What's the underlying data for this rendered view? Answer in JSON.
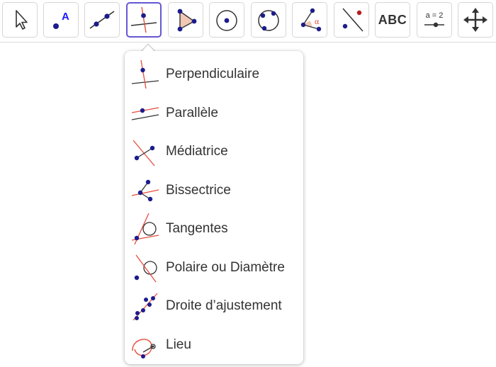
{
  "toolbar": {
    "tools": [
      {
        "name": "move",
        "icon": "cursor-arrow-icon"
      },
      {
        "name": "point",
        "icon": "point-icon",
        "label": "A"
      },
      {
        "name": "line",
        "icon": "line-icon"
      },
      {
        "name": "perpendicular",
        "icon": "perpendicular-line-icon",
        "selected": true
      },
      {
        "name": "polygon",
        "icon": "triangle-polygon-icon"
      },
      {
        "name": "circle-center-point",
        "icon": "circle-center-icon"
      },
      {
        "name": "circle-three-points",
        "icon": "circle-three-points-icon"
      },
      {
        "name": "angle",
        "icon": "angle-icon",
        "label": "α"
      },
      {
        "name": "reflect",
        "icon": "reflect-line-icon"
      },
      {
        "name": "text",
        "icon": "text-abc-icon",
        "label": "ABC"
      },
      {
        "name": "slider",
        "icon": "slider-icon",
        "label": "a = 2"
      },
      {
        "name": "move-graphics",
        "icon": "move-arrows-icon"
      }
    ]
  },
  "menu": {
    "items": [
      {
        "label": "Perpendiculaire",
        "icon": "perpendicular-icon"
      },
      {
        "label": "Parallèle",
        "icon": "parallel-icon"
      },
      {
        "label": "Médiatrice",
        "icon": "perpendicular-bisector-icon"
      },
      {
        "label": "Bissectrice",
        "icon": "angle-bisector-icon"
      },
      {
        "label": "Tangentes",
        "icon": "tangents-icon"
      },
      {
        "label": "Polaire ou Diamètre",
        "icon": "polar-diameter-icon"
      },
      {
        "label": "Droite d’ajustement",
        "icon": "best-fit-line-icon"
      },
      {
        "label": "Lieu",
        "icon": "locus-icon"
      }
    ]
  },
  "colors": {
    "accent": "#6557d2",
    "point": "#1c1c8c",
    "red_line": "#e74c3c",
    "fill": "#f0c8b4",
    "text": "#333333"
  }
}
